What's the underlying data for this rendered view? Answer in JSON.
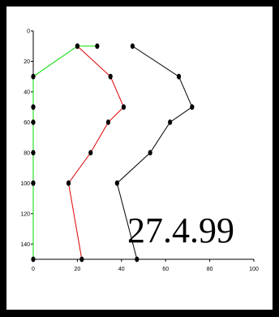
{
  "chart_data": {
    "type": "line",
    "title": "",
    "xlabel": "",
    "ylabel": "",
    "xlim": [
      0,
      100
    ],
    "ylim": [
      0,
      150
    ],
    "y_inverted": true,
    "grid": false,
    "xticks": [
      0,
      20,
      40,
      60,
      80,
      100
    ],
    "yticks": [
      0,
      20,
      40,
      60,
      80,
      100,
      120,
      140
    ],
    "x_tick_labels": [
      "0",
      "20",
      "40",
      "60",
      "80",
      "100"
    ],
    "y_tick_labels": [
      "0",
      "20",
      "40",
      "60",
      "80",
      "100",
      "120",
      "140"
    ],
    "annotation": "27.4.99",
    "series": [
      {
        "color": "#00dd00",
        "marker": "dot",
        "points": [
          [
            29,
            10
          ],
          [
            20,
            10
          ],
          [
            0,
            30
          ],
          [
            0,
            50
          ],
          [
            0,
            60
          ],
          [
            0,
            80
          ],
          [
            0,
            100
          ],
          [
            0,
            150
          ]
        ]
      },
      {
        "color": "#dd0000",
        "marker": "dot",
        "points": [
          [
            20,
            10
          ],
          [
            35,
            30
          ],
          [
            41,
            50
          ],
          [
            34,
            60
          ],
          [
            26,
            80
          ],
          [
            16,
            100
          ],
          [
            22,
            150
          ]
        ]
      },
      {
        "color": "#000000",
        "marker": "dot",
        "points": [
          [
            45,
            10
          ],
          [
            66,
            30
          ],
          [
            72,
            50
          ],
          [
            62,
            60
          ],
          [
            53,
            80
          ],
          [
            38,
            100
          ],
          [
            47,
            150
          ]
        ]
      }
    ]
  }
}
